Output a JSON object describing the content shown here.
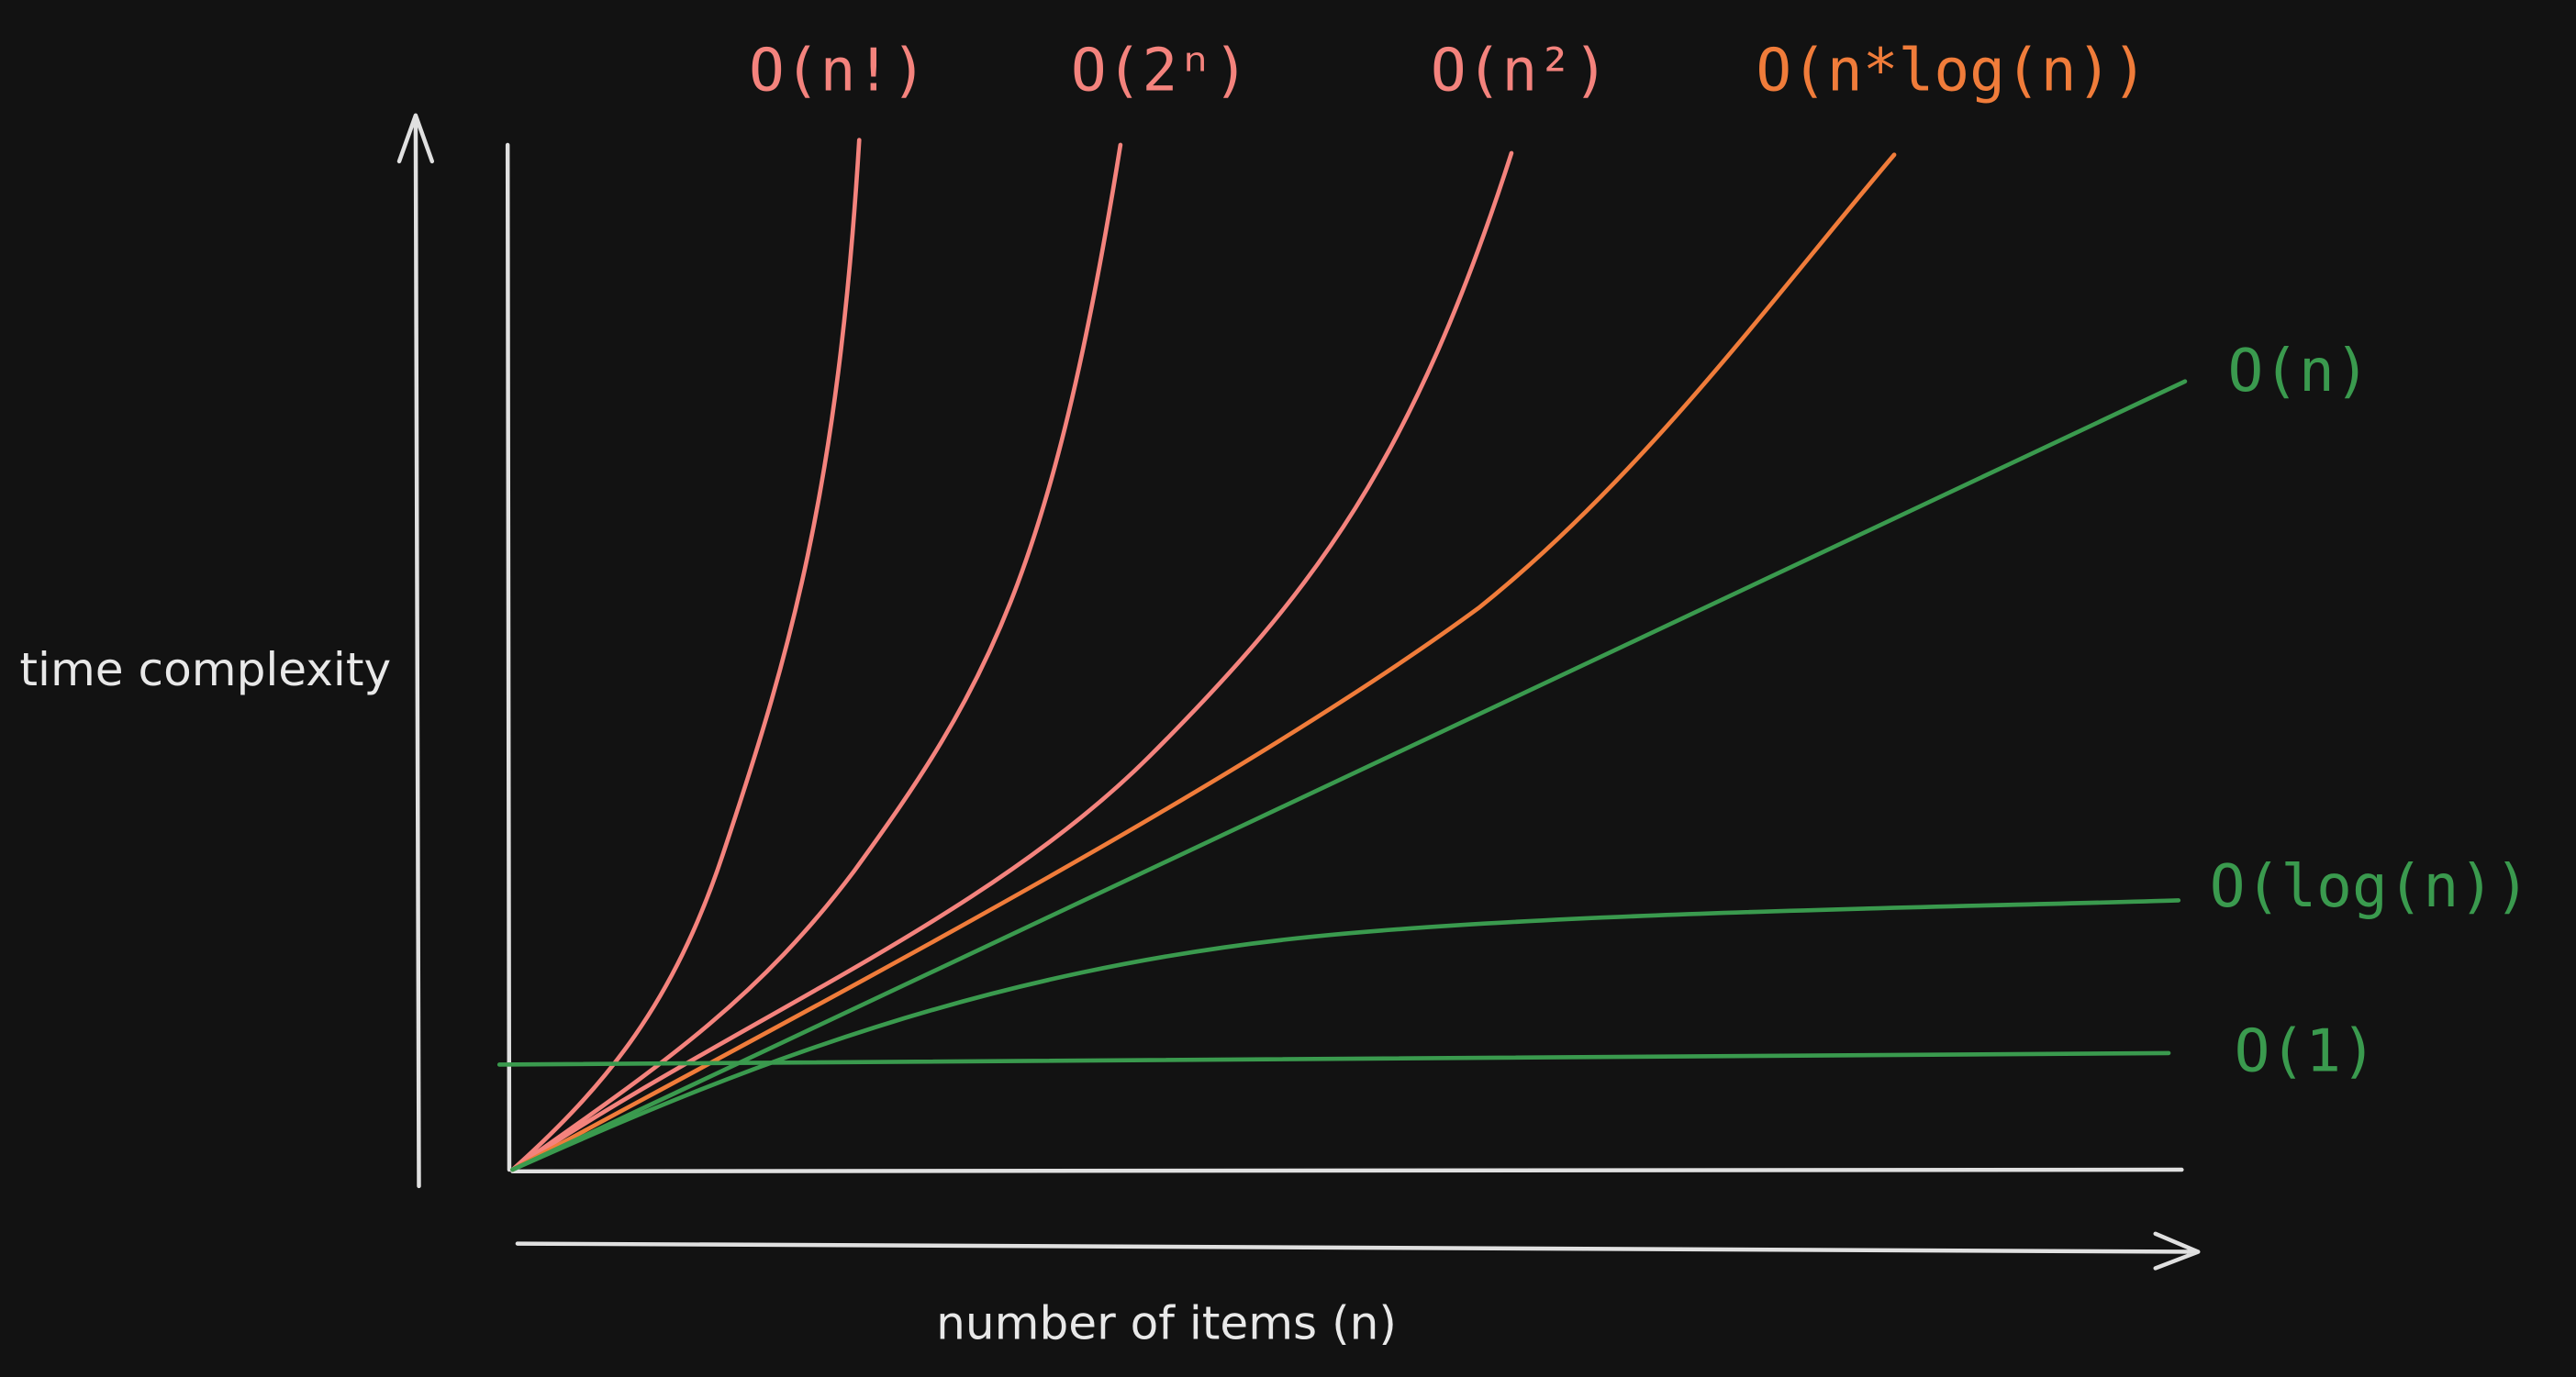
{
  "y_axis_label": "time complexity",
  "x_axis_label": "number of items (n)",
  "curves": [
    {
      "label": "O(n!)",
      "color": "#f4837d"
    },
    {
      "label": "O(2ⁿ)",
      "color": "#f4837d"
    },
    {
      "label": "O(n²)",
      "color": "#f4837d"
    },
    {
      "label": "O(n*log(n))",
      "color": "#f07c3a"
    },
    {
      "label": "O(n)",
      "color": "#3a9a4e"
    },
    {
      "label": "O(log(n))",
      "color": "#3a9a4e"
    },
    {
      "label": "O(1)",
      "color": "#3a9a4e"
    }
  ]
}
